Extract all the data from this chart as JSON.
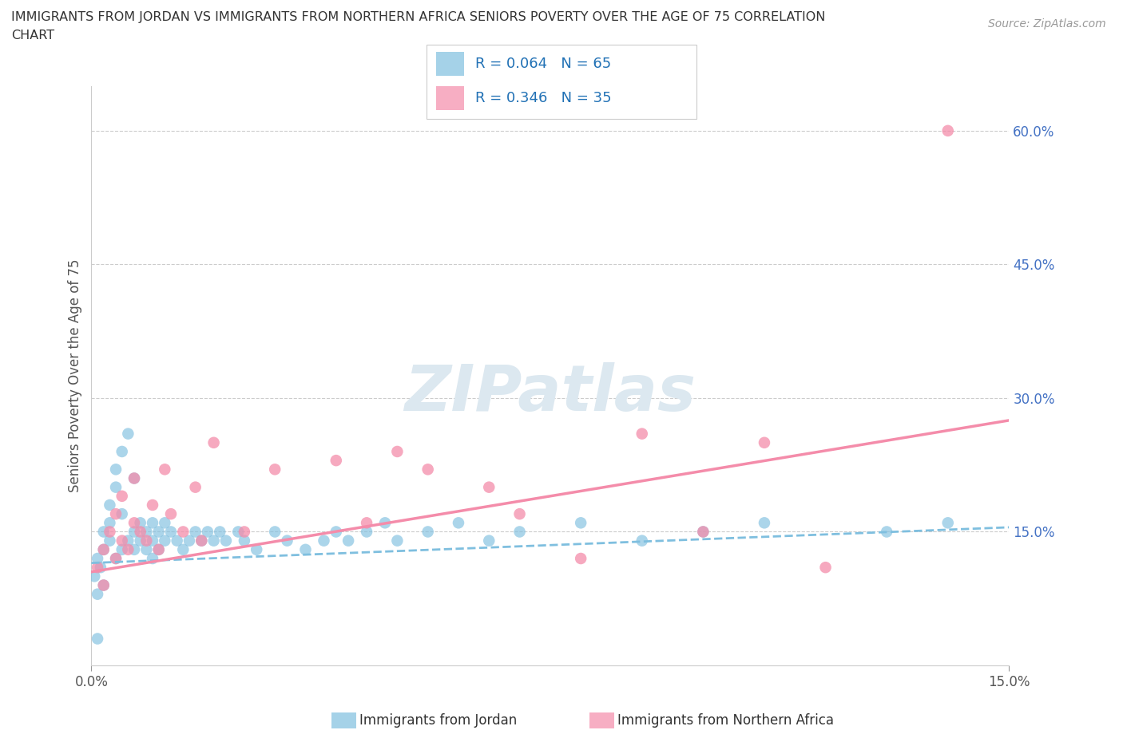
{
  "title_line1": "IMMIGRANTS FROM JORDAN VS IMMIGRANTS FROM NORTHERN AFRICA SENIORS POVERTY OVER THE AGE OF 75 CORRELATION",
  "title_line2": "CHART",
  "source_text": "Source: ZipAtlas.com",
  "ylabel": "Seniors Poverty Over the Age of 75",
  "xlabel_jordan": "Immigrants from Jordan",
  "xlabel_africa": "Immigrants from Northern Africa",
  "xlim": [
    0,
    0.15
  ],
  "ylim": [
    0,
    0.65
  ],
  "ytick_vals": [
    0.15,
    0.3,
    0.45,
    0.6
  ],
  "ytick_labels": [
    "15.0%",
    "30.0%",
    "45.0%",
    "60.0%"
  ],
  "xtick_vals": [
    0.0,
    0.15
  ],
  "xtick_labels": [
    "0.0%",
    "15.0%"
  ],
  "jordan_color": "#7fbfdf",
  "africa_color": "#f48caa",
  "jordan_line_color": "#7fbfdf",
  "africa_line_color": "#f48caa",
  "jordan_R": 0.064,
  "jordan_N": 65,
  "africa_R": 0.346,
  "africa_N": 35,
  "legend_R_color": "#2171b5",
  "background_color": "#ffffff",
  "watermark_text": "ZIPatlas",
  "watermark_color": "#dce8f0",
  "grid_color": "#cccccc",
  "spine_color": "#cccccc",
  "tick_color": "#999999",
  "ylabel_color": "#555555",
  "ytick_color": "#4472c4",
  "title_color": "#333333",
  "source_color": "#999999",
  "jordan_scatter_x": [
    0.0005,
    0.001,
    0.001,
    0.0015,
    0.002,
    0.002,
    0.002,
    0.003,
    0.003,
    0.003,
    0.004,
    0.004,
    0.004,
    0.005,
    0.005,
    0.005,
    0.006,
    0.006,
    0.007,
    0.007,
    0.007,
    0.008,
    0.008,
    0.009,
    0.009,
    0.01,
    0.01,
    0.01,
    0.011,
    0.011,
    0.012,
    0.012,
    0.013,
    0.014,
    0.015,
    0.016,
    0.017,
    0.018,
    0.019,
    0.02,
    0.021,
    0.022,
    0.024,
    0.025,
    0.027,
    0.03,
    0.032,
    0.035,
    0.038,
    0.04,
    0.042,
    0.045,
    0.048,
    0.05,
    0.055,
    0.06,
    0.065,
    0.07,
    0.08,
    0.09,
    0.1,
    0.11,
    0.13,
    0.14,
    0.001
  ],
  "jordan_scatter_y": [
    0.1,
    0.12,
    0.08,
    0.11,
    0.13,
    0.15,
    0.09,
    0.14,
    0.16,
    0.18,
    0.12,
    0.2,
    0.22,
    0.13,
    0.17,
    0.24,
    0.14,
    0.26,
    0.15,
    0.13,
    0.21,
    0.16,
    0.14,
    0.15,
    0.13,
    0.16,
    0.14,
    0.12,
    0.15,
    0.13,
    0.16,
    0.14,
    0.15,
    0.14,
    0.13,
    0.14,
    0.15,
    0.14,
    0.15,
    0.14,
    0.15,
    0.14,
    0.15,
    0.14,
    0.13,
    0.15,
    0.14,
    0.13,
    0.14,
    0.15,
    0.14,
    0.15,
    0.16,
    0.14,
    0.15,
    0.16,
    0.14,
    0.15,
    0.16,
    0.14,
    0.15,
    0.16,
    0.15,
    0.16,
    0.03
  ],
  "africa_scatter_x": [
    0.001,
    0.002,
    0.002,
    0.003,
    0.004,
    0.004,
    0.005,
    0.005,
    0.006,
    0.007,
    0.007,
    0.008,
    0.009,
    0.01,
    0.011,
    0.012,
    0.013,
    0.015,
    0.017,
    0.018,
    0.02,
    0.025,
    0.03,
    0.04,
    0.045,
    0.05,
    0.055,
    0.065,
    0.07,
    0.08,
    0.09,
    0.1,
    0.11,
    0.12,
    0.14
  ],
  "africa_scatter_y": [
    0.11,
    0.13,
    0.09,
    0.15,
    0.12,
    0.17,
    0.14,
    0.19,
    0.13,
    0.16,
    0.21,
    0.15,
    0.14,
    0.18,
    0.13,
    0.22,
    0.17,
    0.15,
    0.2,
    0.14,
    0.25,
    0.15,
    0.22,
    0.23,
    0.16,
    0.24,
    0.22,
    0.2,
    0.17,
    0.12,
    0.26,
    0.15,
    0.25,
    0.11,
    0.6
  ],
  "jordan_trend_x": [
    0.0,
    0.15
  ],
  "jordan_trend_y": [
    0.115,
    0.155
  ],
  "africa_trend_x": [
    0.0,
    0.15
  ],
  "africa_trend_y": [
    0.105,
    0.275
  ]
}
